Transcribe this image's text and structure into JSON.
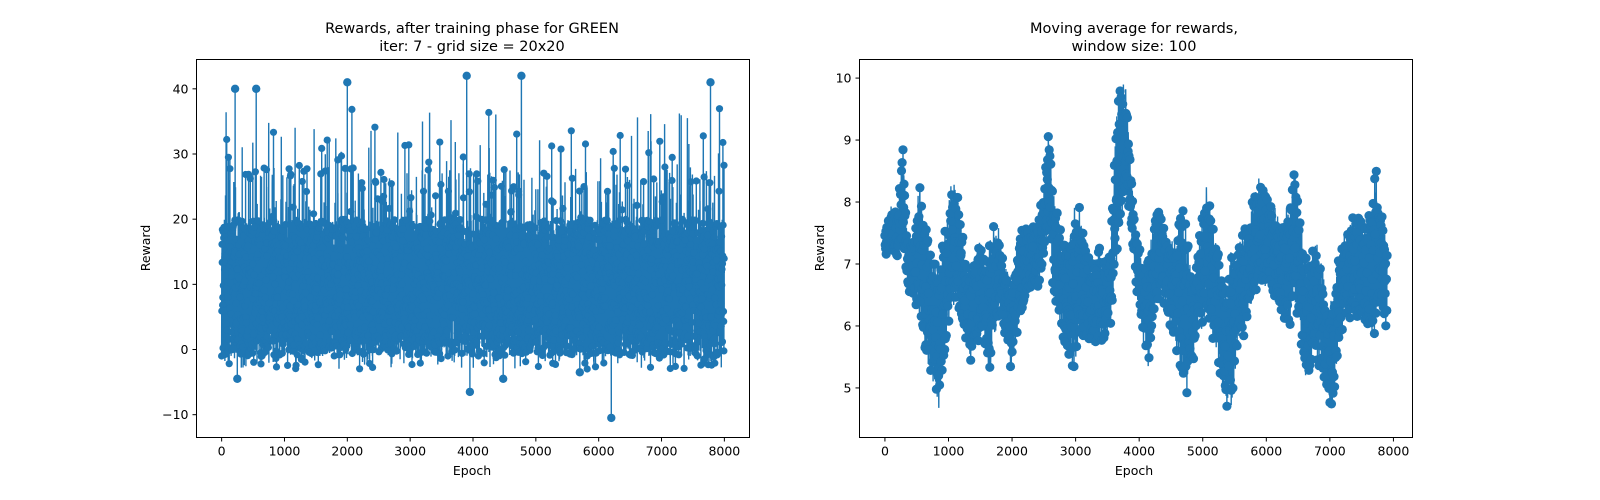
{
  "colors": {
    "series": "#1f77b4",
    "axes": "#000000",
    "background": "#ffffff"
  },
  "chart_data": [
    {
      "type": "line",
      "marker": "circle",
      "title_lines": [
        "Rewards, after training phase for GREEN",
        "iter: 7 - grid size = 20x20"
      ],
      "xlabel": "Epoch",
      "ylabel": "Reward",
      "xlim": [
        -400,
        8400
      ],
      "ylim": [
        -13.5,
        44.5
      ],
      "xticks": [
        0,
        1000,
        2000,
        3000,
        4000,
        5000,
        6000,
        7000,
        8000
      ],
      "yticks": [
        -10,
        0,
        10,
        20,
        30,
        40
      ],
      "n_points": 8000,
      "value_summary": {
        "baseline_range": [
          -1,
          29
        ],
        "median_approx": 8,
        "max_approx": 42,
        "min_approx": -10.5
      },
      "annotated_points": [
        {
          "x": 215,
          "y": 40
        },
        {
          "x": 550,
          "y": 40
        },
        {
          "x": 2000,
          "y": 41
        },
        {
          "x": 3900,
          "y": 42
        },
        {
          "x": 4770,
          "y": 42
        },
        {
          "x": 7780,
          "y": 41
        },
        {
          "x": 3950,
          "y": -6.5
        },
        {
          "x": 6200,
          "y": -10.5
        },
        {
          "x": 4480,
          "y": -4.5
        },
        {
          "x": 250,
          "y": -4.5
        },
        {
          "x": 5700,
          "y": -3.5
        }
      ]
    },
    {
      "type": "line",
      "marker": "circle",
      "title_lines": [
        "Moving average for rewards,",
        "window size: 100"
      ],
      "xlabel": "Epoch",
      "ylabel": "Reward",
      "xlim": [
        -400,
        8300
      ],
      "ylim": [
        4.2,
        10.3
      ],
      "xticks": [
        0,
        1000,
        2000,
        3000,
        4000,
        5000,
        6000,
        7000,
        8000
      ],
      "yticks": [
        5,
        6,
        7,
        8,
        9,
        10
      ],
      "window": 100,
      "x": [
        0,
        100,
        200,
        280,
        350,
        450,
        550,
        650,
        750,
        850,
        950,
        1050,
        1150,
        1250,
        1350,
        1450,
        1550,
        1620,
        1700,
        1800,
        1900,
        2000,
        2100,
        2200,
        2300,
        2400,
        2500,
        2580,
        2650,
        2750,
        2850,
        2950,
        3050,
        3150,
        3250,
        3350,
        3450,
        3550,
        3650,
        3720,
        3800,
        3850,
        3950,
        4050,
        4150,
        4250,
        4350,
        4450,
        4550,
        4650,
        4750,
        4850,
        4950,
        5050,
        5150,
        5250,
        5350,
        5450,
        5550,
        5650,
        5750,
        5850,
        5950,
        6050,
        6150,
        6250,
        6350,
        6450,
        6550,
        6650,
        6750,
        6850,
        6950,
        7050,
        7150,
        7250,
        7350,
        7450,
        7550,
        7650,
        7720,
        7800,
        7900
      ],
      "y_low": [
        7.1,
        7.2,
        7.0,
        7.3,
        6.6,
        6.4,
        6.0,
        5.4,
        5.0,
        4.6,
        5.3,
        6.4,
        6.2,
        5.8,
        5.4,
        5.6,
        6.0,
        5.0,
        5.6,
        6.2,
        5.6,
        5.2,
        6.0,
        6.3,
        6.5,
        6.6,
        7.0,
        7.6,
        6.4,
        6.0,
        5.6,
        5.2,
        5.6,
        5.7,
        5.6,
        5.8,
        5.7,
        6.0,
        7.0,
        7.6,
        8.0,
        7.8,
        6.6,
        5.8,
        5.3,
        6.2,
        6.5,
        6.1,
        5.8,
        5.2,
        4.9,
        5.4,
        5.9,
        6.0,
        5.8,
        5.3,
        4.7,
        4.5,
        5.6,
        5.8,
        6.2,
        6.4,
        6.5,
        6.8,
        6.3,
        6.2,
        5.8,
        6.4,
        5.4,
        4.9,
        5.6,
        5.2,
        4.8,
        4.7,
        5.7,
        6.2,
        6.0,
        6.1,
        6.0,
        5.7,
        5.7,
        6.3,
        5.8
      ],
      "y_high": [
        7.5,
        8.0,
        7.8,
        9.0,
        7.6,
        7.4,
        8.4,
        7.8,
        7.2,
        7.0,
        7.6,
        8.4,
        8.3,
        7.2,
        6.8,
        7.5,
        7.2,
        7.3,
        7.7,
        7.6,
        7.0,
        6.8,
        7.6,
        7.6,
        7.6,
        7.8,
        8.2,
        9.3,
        8.3,
        7.6,
        7.4,
        7.8,
        8.2,
        7.5,
        7.0,
        7.3,
        7.2,
        7.4,
        9.6,
        10.0,
        9.8,
        8.8,
        7.6,
        7.1,
        7.2,
        8.0,
        7.8,
        7.5,
        7.4,
        8.2,
        7.6,
        6.8,
        7.6,
        8.4,
        8.0,
        7.3,
        6.6,
        7.3,
        7.4,
        7.6,
        7.8,
        8.5,
        8.3,
        8.1,
        7.9,
        7.6,
        8.1,
        8.6,
        7.8,
        7.0,
        7.4,
        7.3,
        6.5,
        6.4,
        7.2,
        7.6,
        7.8,
        8.0,
        7.7,
        8.2,
        8.6,
        8.2,
        7.4
      ]
    }
  ]
}
